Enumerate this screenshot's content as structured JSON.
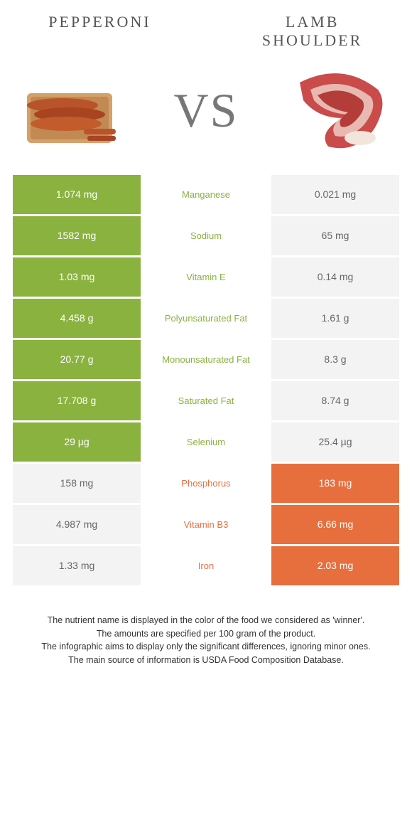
{
  "foods": {
    "left": {
      "name": "Pepperoni",
      "color": "#8ab23f"
    },
    "right": {
      "name": "Lamb shoulder",
      "name_line1": "Lamb",
      "name_line2": "shoulder",
      "color": "#e76f3e"
    }
  },
  "vs_text": "VS",
  "neutral_bg": "#f3f3f3",
  "nutrients": [
    {
      "name": "Manganese",
      "left": "1.074 mg",
      "right": "0.021 mg",
      "winner": "left"
    },
    {
      "name": "Sodium",
      "left": "1582 mg",
      "right": "65 mg",
      "winner": "left"
    },
    {
      "name": "Vitamin E",
      "left": "1.03 mg",
      "right": "0.14 mg",
      "winner": "left"
    },
    {
      "name": "Polyunsaturated fat",
      "left": "4.458 g",
      "right": "1.61 g",
      "winner": "left"
    },
    {
      "name": "Monounsaturated fat",
      "left": "20.77 g",
      "right": "8.3 g",
      "winner": "left"
    },
    {
      "name": "Saturated fat",
      "left": "17.708 g",
      "right": "8.74 g",
      "winner": "left"
    },
    {
      "name": "Selenium",
      "left": "29 µg",
      "right": "25.4 µg",
      "winner": "left"
    },
    {
      "name": "Phosphorus",
      "left": "158 mg",
      "right": "183 mg",
      "winner": "right"
    },
    {
      "name": "Vitamin B3",
      "left": "4.987 mg",
      "right": "6.66 mg",
      "winner": "right"
    },
    {
      "name": "Iron",
      "left": "1.33 mg",
      "right": "2.03 mg",
      "winner": "right"
    }
  ],
  "footer_lines": [
    "The nutrient name is displayed in the color of the food we considered as 'winner'.",
    "The amounts are specified per 100 gram of the product.",
    "The infographic aims to display only the significant differences, ignoring minor ones.",
    "The main source of information is USDA Food Composition Database."
  ]
}
